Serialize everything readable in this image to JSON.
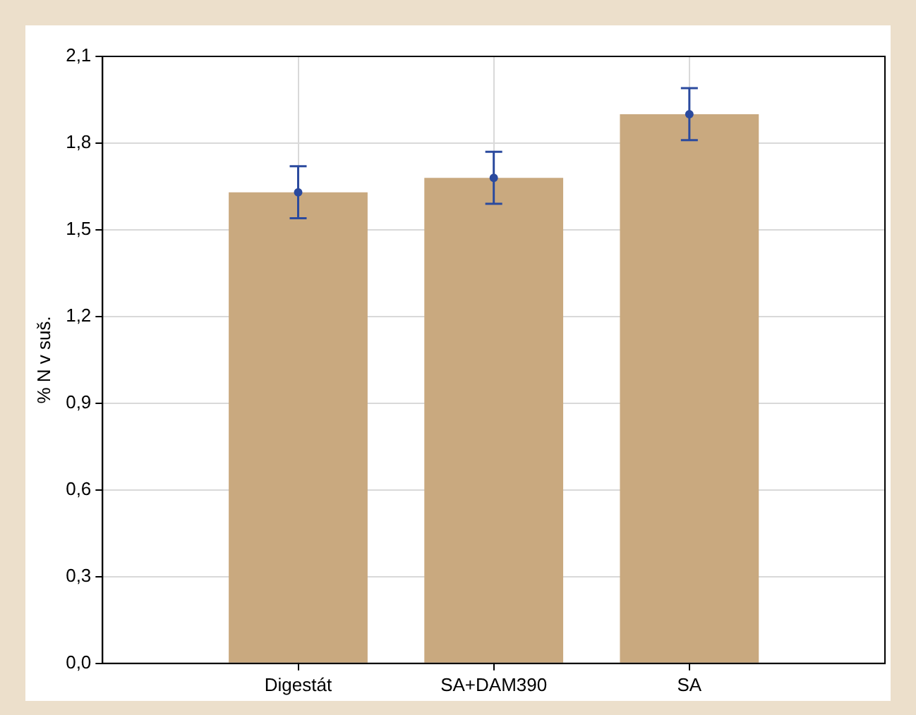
{
  "chart_data": {
    "type": "bar",
    "ylabel": "% N v suš.",
    "categories": [
      "Digestát",
      "SA+DAM390",
      "SA"
    ],
    "series": [
      {
        "color": "#c9a97f",
        "values": [
          1.63,
          1.68,
          1.9
        ]
      },
      {
        "type": "scatter",
        "color": "#2b4a9e",
        "x": [
          "Digestát",
          "SA+DAM390",
          "SA"
        ],
        "values": [
          1.63,
          1.68,
          1.9
        ],
        "errors": [
          0.09,
          0.09,
          0.09
        ],
        "marker": "circle"
      }
    ],
    "ylim": [
      0,
      2.1
    ],
    "yticks": [
      {
        "value": 0,
        "label": "0,0"
      },
      {
        "value": 0.3,
        "label": "0,3"
      },
      {
        "value": 0.6,
        "label": "0,6"
      },
      {
        "value": 0.9,
        "label": "0,9"
      },
      {
        "value": 1.2,
        "label": "1,2"
      },
      {
        "value": 1.5,
        "label": "1,5"
      },
      {
        "value": 1.8,
        "label": "1,8"
      },
      {
        "value": 2.1,
        "label": "2,1"
      }
    ],
    "grid": true,
    "legend": false
  }
}
